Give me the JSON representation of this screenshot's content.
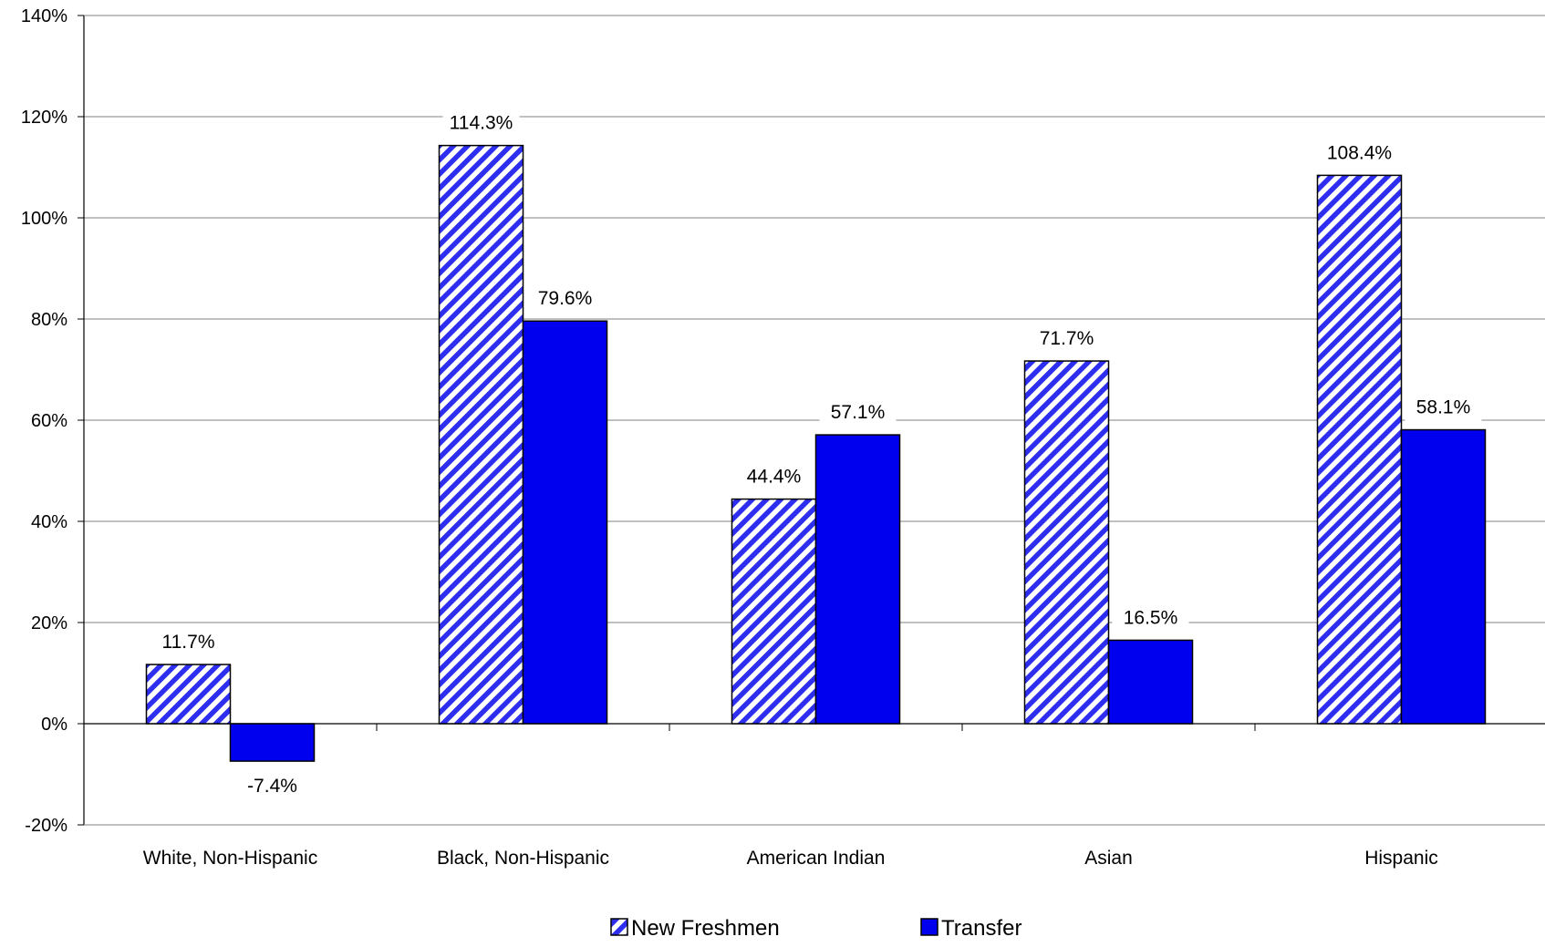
{
  "chart_data": {
    "type": "bar",
    "categories": [
      "White, Non-Hispanic",
      "Black, Non-Hispanic",
      "American Indian",
      "Asian",
      "Hispanic"
    ],
    "series": [
      {
        "name": "New Freshmen",
        "values": [
          11.7,
          114.3,
          44.4,
          71.7,
          108.4
        ],
        "labels": [
          "11.7%",
          "114.3%",
          "44.4%",
          "71.7%",
          "108.4%"
        ],
        "style": "hatched",
        "color": "#2e2ef0"
      },
      {
        "name": "Transfer",
        "values": [
          -7.4,
          79.6,
          57.1,
          16.5,
          58.1
        ],
        "labels": [
          "-7.4%",
          "79.6%",
          "57.1%",
          "16.5%",
          "58.1%"
        ],
        "style": "solid",
        "color": "#0000ee"
      }
    ],
    "ylim": [
      -20,
      140
    ],
    "yticks": [
      140,
      120,
      100,
      80,
      60,
      40,
      20,
      0,
      -20
    ],
    "ytick_labels": [
      "140%",
      "120%",
      "100%",
      "80%",
      "60%",
      "40%",
      "20%",
      "0%",
      "-20%"
    ],
    "grid": true,
    "legend_position": "bottom-center",
    "title": "",
    "xlabel": "",
    "ylabel": ""
  }
}
